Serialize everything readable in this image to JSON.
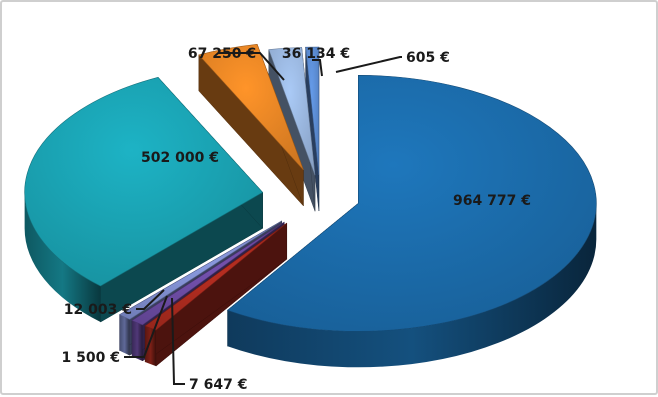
{
  "chart_data": {
    "type": "pie",
    "title": "",
    "unit": "€",
    "slices": [
      {
        "label": "964 777 €",
        "value": 964777,
        "color": "#1b6aa8"
      },
      {
        "label": "7 647 €",
        "value": 7647,
        "color": "#a82a1e"
      },
      {
        "label": "1 500 €",
        "value": 1500,
        "color": "#6a4aa0"
      },
      {
        "label": "12 003 €",
        "value": 12003,
        "color": "#7e8ccc"
      },
      {
        "label": "502 000 €",
        "value": 502000,
        "color": "#1aa0b0"
      },
      {
        "label": "67 250 €",
        "value": 67250,
        "color": "#e68425"
      },
      {
        "label": "36 134 €",
        "value": 36134,
        "color": "#98b4dc"
      },
      {
        "label": "605 €",
        "value": 605,
        "color": "#5a8ad0"
      }
    ],
    "style": "3d-exploded",
    "legend": "none"
  }
}
